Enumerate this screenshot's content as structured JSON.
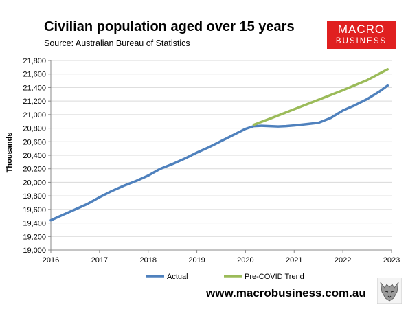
{
  "header": {
    "title": "Civilian population aged over 15 years",
    "subtitle": "Source: Australian Bureau of Statistics"
  },
  "logo": {
    "line1": "MACRO",
    "line2": "BUSINESS",
    "color": "#e02020"
  },
  "footer": {
    "website": "www.macrobusiness.com.au",
    "mascot_icon": "wolf-icon"
  },
  "chart_data": {
    "type": "line",
    "title": "Civilian population aged over 15 years",
    "ylabel": "Thousands",
    "xlabel": "",
    "ylim": [
      19000,
      21800
    ],
    "xlim": [
      2016,
      2023
    ],
    "yticks": [
      19000,
      19200,
      19400,
      19600,
      19800,
      20000,
      20200,
      20400,
      20600,
      20800,
      21000,
      21200,
      21400,
      21600,
      21800
    ],
    "ytick_labels": [
      "19,000",
      "19,200",
      "19,400",
      "19,600",
      "19,800",
      "20,000",
      "20,200",
      "20,400",
      "20,600",
      "20,800",
      "21,000",
      "21,200",
      "21,400",
      "21,600",
      "21,800"
    ],
    "xticks": [
      2016,
      2017,
      2018,
      2019,
      2020,
      2021,
      2022,
      2023
    ],
    "xtick_labels": [
      "2016",
      "2017",
      "2018",
      "2019",
      "2020",
      "2021",
      "2022",
      "2023"
    ],
    "grid": "horizontal",
    "legend": "bottom",
    "series": [
      {
        "name": "Actual",
        "color": "#4f81bd",
        "x": [
          2016.0,
          2016.25,
          2016.5,
          2016.75,
          2017.0,
          2017.25,
          2017.5,
          2017.75,
          2018.0,
          2018.25,
          2018.5,
          2018.75,
          2019.0,
          2019.25,
          2019.5,
          2019.75,
          2020.0,
          2020.17,
          2020.33,
          2020.5,
          2020.67,
          2020.83,
          2021.0,
          2021.25,
          2021.5,
          2021.75,
          2022.0,
          2022.25,
          2022.5,
          2022.75,
          2022.92
        ],
        "y": [
          19440,
          19520,
          19600,
          19680,
          19780,
          19870,
          19950,
          20020,
          20100,
          20200,
          20270,
          20350,
          20440,
          20520,
          20610,
          20700,
          20790,
          20830,
          20835,
          20830,
          20825,
          20830,
          20840,
          20860,
          20880,
          20950,
          21060,
          21140,
          21230,
          21340,
          21430
        ]
      },
      {
        "name": "Pre-COVID Trend",
        "color": "#9bbb59",
        "x": [
          2020.17,
          2020.5,
          2021.0,
          2021.5,
          2022.0,
          2022.5,
          2022.92
        ],
        "y": [
          20850,
          20940,
          21080,
          21220,
          21360,
          21510,
          21670
        ]
      }
    ]
  }
}
